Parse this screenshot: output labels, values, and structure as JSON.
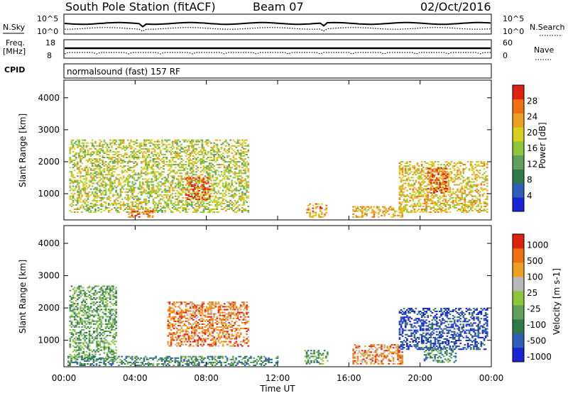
{
  "header": {
    "station": "South Pole Station (fitACF)",
    "beam": "Beam 07",
    "date": "02/Oct/2016"
  },
  "status": {
    "nsky_label": "N.Sky",
    "nsky_ticks": [
      "10^5",
      "10^0"
    ],
    "nsearch_label": "N.Search",
    "nsearch_ticks": [
      "10^5",
      "10^0"
    ],
    "freq_label_1": "Freq.",
    "freq_label_2": "[MHz]",
    "freq_ticks": [
      "18",
      "8"
    ],
    "nave_label": "Nave",
    "nave_ticks": [
      "60",
      "0"
    ],
    "cpid_label": "CPID",
    "cpid_text": "normalsound (fast) 157 RF"
  },
  "chart_data": [
    {
      "type": "heatmap",
      "name": "power",
      "ylabel": "Slant Range [km]",
      "xlabel": "Time UT",
      "xlim_hours": [
        0,
        24
      ],
      "ylim_km": [
        180,
        4550
      ],
      "yticks": [
        1000,
        2000,
        3000,
        4000
      ],
      "colorbar": {
        "label": "Power [dB]",
        "ticks": [
          4,
          8,
          12,
          16,
          20,
          24,
          28
        ],
        "colors": [
          "#1a23d6",
          "#2f5fb8",
          "#2f7a4a",
          "#5fa05a",
          "#8cc63a",
          "#d8d020",
          "#f0a020",
          "#f07010",
          "#e02010"
        ]
      },
      "echo_regions": [
        {
          "t0": 0.3,
          "t1": 10.4,
          "r0": 400,
          "r1": 2700,
          "level": 0.55
        },
        {
          "t0": 6.8,
          "t1": 8.2,
          "r0": 800,
          "r1": 1500,
          "level": 0.9
        },
        {
          "t0": 3.6,
          "t1": 5.0,
          "r0": 250,
          "r1": 500,
          "level": 0.8
        },
        {
          "t0": 13.6,
          "t1": 14.8,
          "r0": 250,
          "r1": 700,
          "level": 0.75
        },
        {
          "t0": 16.2,
          "t1": 19.0,
          "r0": 250,
          "r1": 600,
          "level": 0.7
        },
        {
          "t0": 18.8,
          "t1": 23.8,
          "r0": 400,
          "r1": 2000,
          "level": 0.65
        },
        {
          "t0": 20.4,
          "t1": 21.6,
          "r0": 1000,
          "r1": 1800,
          "level": 0.85
        }
      ]
    },
    {
      "type": "heatmap",
      "name": "velocity",
      "ylabel": "Slant Range [km]",
      "xlabel": "Time UT",
      "xlim_hours": [
        0,
        24
      ],
      "ylim_km": [
        180,
        4550
      ],
      "yticks": [
        1000,
        2000,
        3000,
        4000
      ],
      "colorbar": {
        "label": "Velocity [m s-1]",
        "ticks": [
          1000,
          500,
          100,
          25,
          -25,
          -100,
          -500,
          -1000
        ],
        "colors": [
          "#1a23d6",
          "#2f5fb8",
          "#2f7a4a",
          "#5fa05a",
          "#8cc63a",
          "#b8b8b8",
          "#f0a020",
          "#f07010",
          "#e02010"
        ]
      },
      "echo_regions": [
        {
          "t0": 0.3,
          "t1": 3.0,
          "r0": 400,
          "r1": 2700,
          "level": 0.4
        },
        {
          "t0": 5.8,
          "t1": 10.4,
          "r0": 800,
          "r1": 2200,
          "level": 0.8
        },
        {
          "t0": 0.2,
          "t1": 12.0,
          "r0": 200,
          "r1": 500,
          "level": 0.3
        },
        {
          "t0": 13.5,
          "t1": 14.8,
          "r0": 250,
          "r1": 700,
          "level": 0.35
        },
        {
          "t0": 16.2,
          "t1": 19.0,
          "r0": 250,
          "r1": 900,
          "level": 0.78
        },
        {
          "t0": 18.8,
          "t1": 23.8,
          "r0": 700,
          "r1": 2000,
          "level": 0.12
        },
        {
          "t0": 20.2,
          "t1": 22.0,
          "r0": 300,
          "r1": 800,
          "level": 0.3
        }
      ]
    }
  ],
  "x_axis": {
    "ticks": [
      "00:00",
      "04:00",
      "08:00",
      "12:00",
      "16:00",
      "20:00",
      "00:00"
    ],
    "label": "Time UT"
  }
}
